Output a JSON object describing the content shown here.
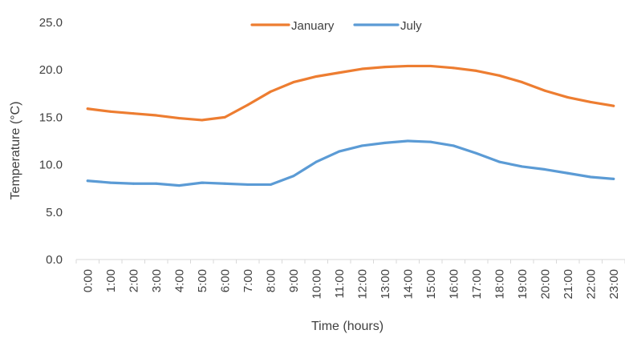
{
  "chart_data": {
    "type": "line",
    "title": "",
    "xlabel": "Time (hours)",
    "ylabel": "Temperature (°C)",
    "ylim": [
      0,
      25
    ],
    "yticks": [
      "0.0",
      "5.0",
      "10.0",
      "15.0",
      "20.0",
      "25.0"
    ],
    "grid": false,
    "legend_position": "top-center",
    "categories": [
      "0:00",
      "1:00",
      "2:00",
      "3:00",
      "4:00",
      "5:00",
      "6:00",
      "7:00",
      "8:00",
      "9:00",
      "10:00",
      "11:00",
      "12:00",
      "13:00",
      "14:00",
      "15:00",
      "16:00",
      "17:00",
      "18:00",
      "19:00",
      "20:00",
      "21:00",
      "22:00",
      "23:00"
    ],
    "series": [
      {
        "name": "January",
        "color": "#ED7D31",
        "values": [
          15.9,
          15.6,
          15.4,
          15.2,
          14.9,
          14.7,
          15.0,
          16.3,
          17.7,
          18.7,
          19.3,
          19.7,
          20.1,
          20.3,
          20.4,
          20.4,
          20.2,
          19.9,
          19.4,
          18.7,
          17.8,
          17.1,
          16.6,
          16.2
        ]
      },
      {
        "name": "July",
        "color": "#5B9BD5",
        "values": [
          8.3,
          8.1,
          8.0,
          8.0,
          7.8,
          8.1,
          8.0,
          7.9,
          7.9,
          8.8,
          10.3,
          11.4,
          12.0,
          12.3,
          12.5,
          12.4,
          12.0,
          11.2,
          10.3,
          9.8,
          9.5,
          9.1,
          8.7,
          8.5
        ]
      }
    ]
  }
}
